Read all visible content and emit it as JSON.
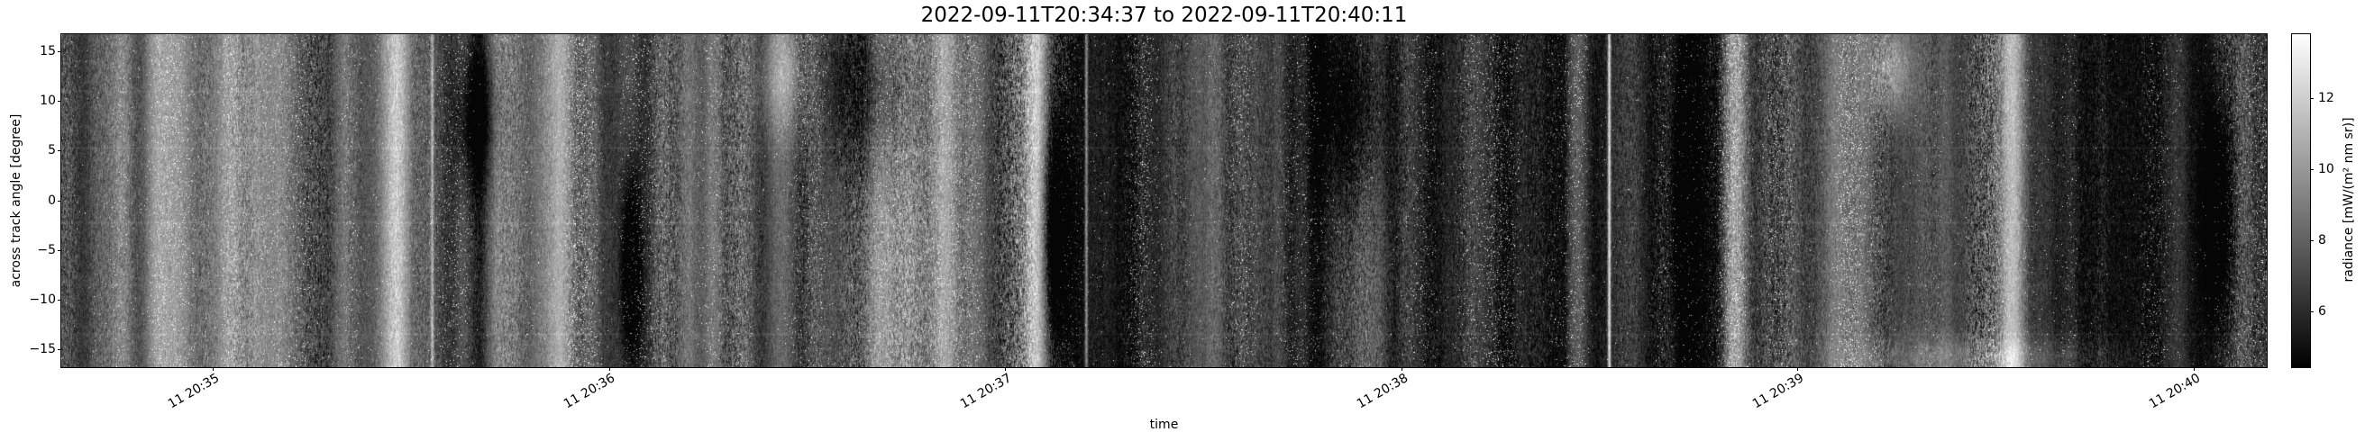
{
  "chart_data": {
    "type": "heatmap",
    "title": "2022-09-11T20:34:37 to 2022-09-11T20:40:11",
    "xlabel": "time",
    "ylabel": "across track angle [degree]",
    "time_start": "2022-09-11T20:34:37",
    "time_end": "2022-09-11T20:40:11",
    "duration_seconds": 334,
    "x_ticks": [
      {
        "label": "11 20:35",
        "seconds_from_start": 23
      },
      {
        "label": "11 20:36",
        "seconds_from_start": 83
      },
      {
        "label": "11 20:37",
        "seconds_from_start": 143
      },
      {
        "label": "11 20:38",
        "seconds_from_start": 203
      },
      {
        "label": "11 20:39",
        "seconds_from_start": 263
      },
      {
        "label": "11 20:40",
        "seconds_from_start": 323
      }
    ],
    "y_ticks": [
      {
        "label": "15",
        "value": 15
      },
      {
        "label": "10",
        "value": 10
      },
      {
        "label": "5",
        "value": 5
      },
      {
        "label": "0",
        "value": 0
      },
      {
        "label": "−5",
        "value": -5
      },
      {
        "label": "−10",
        "value": -10
      },
      {
        "label": "−15",
        "value": -15
      }
    ],
    "ylim": {
      "min": -16.75,
      "max": 16.75
    },
    "grid": false,
    "colormap": "gray",
    "colorbar": {
      "label": "radiance [mW/(m² nm sr)]",
      "vmin": 4.45,
      "vmax": 13.8,
      "ticks": [
        {
          "label": "12",
          "value": 12
        },
        {
          "label": "10",
          "value": 10
        },
        {
          "label": "8",
          "value": 8
        },
        {
          "label": "6",
          "value": 6
        }
      ],
      "position": "right"
    },
    "texture": {
      "seed": 7,
      "base_level": 0.3,
      "description_pattern": "noisy vertical cloud streaks over dark ocean background",
      "bands": [
        {
          "x": 0.152,
          "w": 0.006,
          "a": 0.3
        },
        {
          "x": 0.3,
          "w": 0.008,
          "a": 0.2
        },
        {
          "x": 0.397,
          "w": 0.01,
          "a": 0.2
        },
        {
          "x": 0.442,
          "w": 0.004,
          "a": 0.5
        },
        {
          "x": 0.53,
          "w": 0.015,
          "a": 0.18
        },
        {
          "x": 0.759,
          "w": 0.005,
          "a": 0.55
        },
        {
          "x": 0.884,
          "w": 0.004,
          "a": 0.25
        }
      ],
      "lines": [
        {
          "x": 0.7017,
          "a": 0.7
        },
        {
          "x": 0.4646,
          "a": 0.45
        },
        {
          "x": 0.168,
          "a": 0.35
        }
      ],
      "blobs": [
        {
          "x": 0.4516,
          "y": 0.6,
          "rx": 0.006,
          "ry": 0.32,
          "a": -0.6
        },
        {
          "x": 0.258,
          "y": 0.71,
          "rx": 0.0045,
          "ry": 0.3,
          "a": -0.55
        },
        {
          "x": 0.978,
          "y": 0.55,
          "rx": 0.006,
          "ry": 0.33,
          "a": -0.5
        },
        {
          "x": 0.188,
          "y": 0.25,
          "rx": 0.009,
          "ry": 0.2,
          "a": -0.35
        },
        {
          "x": 0.365,
          "y": 0.15,
          "rx": 0.02,
          "ry": 0.25,
          "a": -0.3
        },
        {
          "x": 0.585,
          "y": 0.2,
          "rx": 0.015,
          "ry": 0.3,
          "a": -0.35
        },
        {
          "x": 0.737,
          "y": 0.5,
          "rx": 0.007,
          "ry": 0.5,
          "a": -0.35
        },
        {
          "x": 0.328,
          "y": 0.12,
          "rx": 0.012,
          "ry": 0.18,
          "a": 0.3
        },
        {
          "x": 0.83,
          "y": 0.1,
          "rx": 0.01,
          "ry": 0.15,
          "a": 0.35
        },
        {
          "x": 0.87,
          "y": 0.97,
          "rx": 0.06,
          "ry": 0.06,
          "a": 0.2
        }
      ],
      "hlines": [
        {
          "y": 0.17,
          "a": 0.03
        },
        {
          "y": 0.34,
          "a": 0.05
        },
        {
          "y": 0.565,
          "a": 0.05
        },
        {
          "y": 0.75,
          "a": 0.03
        },
        {
          "y": 0.9,
          "a": 0.05
        }
      ]
    }
  }
}
